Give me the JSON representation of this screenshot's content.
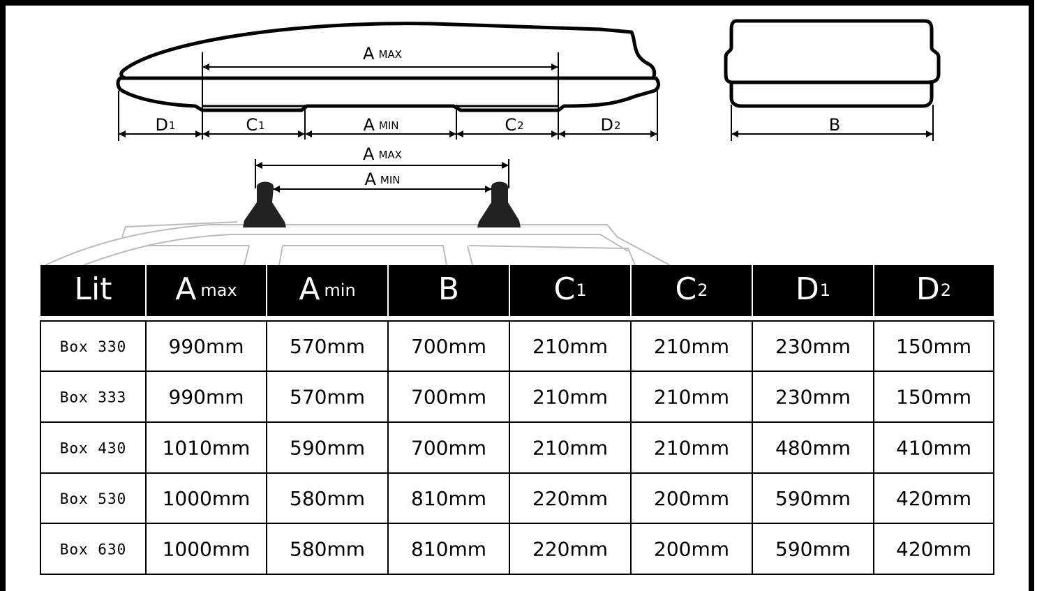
{
  "diagram": {
    "box_a_max": {
      "main": "A",
      "sub": "MAX"
    },
    "d1": {
      "main": "D",
      "sub": "1"
    },
    "c1": {
      "main": "C",
      "sub": "1"
    },
    "a_min": {
      "main": "A",
      "sub": "MIN"
    },
    "c2": {
      "main": "C",
      "sub": "2"
    },
    "d2": {
      "main": "D",
      "sub": "2"
    },
    "b": "B",
    "rack_a_max": {
      "main": "A",
      "sub": "MAX"
    },
    "rack_a_min": {
      "main": "A",
      "sub": "MIN"
    }
  },
  "table": {
    "header": [
      "Lit",
      {
        "main": "A",
        "sub": "max"
      },
      {
        "main": "A",
        "sub": "min"
      },
      "B",
      {
        "main": "C",
        "sub": "1"
      },
      {
        "main": "C",
        "sub": "2"
      },
      {
        "main": "D",
        "sub": "1"
      },
      {
        "main": "D",
        "sub": "2"
      }
    ],
    "rows": [
      [
        "Box 330",
        "990mm",
        "570mm",
        "700mm",
        "210mm",
        "210mm",
        "230mm",
        "150mm"
      ],
      [
        "Box 333",
        "990mm",
        "570mm",
        "700mm",
        "210mm",
        "210mm",
        "230mm",
        "150mm"
      ],
      [
        "Box 430",
        "1010mm",
        "590mm",
        "700mm",
        "210mm",
        "210mm",
        "480mm",
        "410mm"
      ],
      [
        "Box 530",
        "1000mm",
        "580mm",
        "810mm",
        "220mm",
        "200mm",
        "590mm",
        "420mm"
      ],
      [
        "Box 630",
        "1000mm",
        "580mm",
        "810mm",
        "220mm",
        "200mm",
        "590mm",
        "420mm"
      ]
    ]
  }
}
